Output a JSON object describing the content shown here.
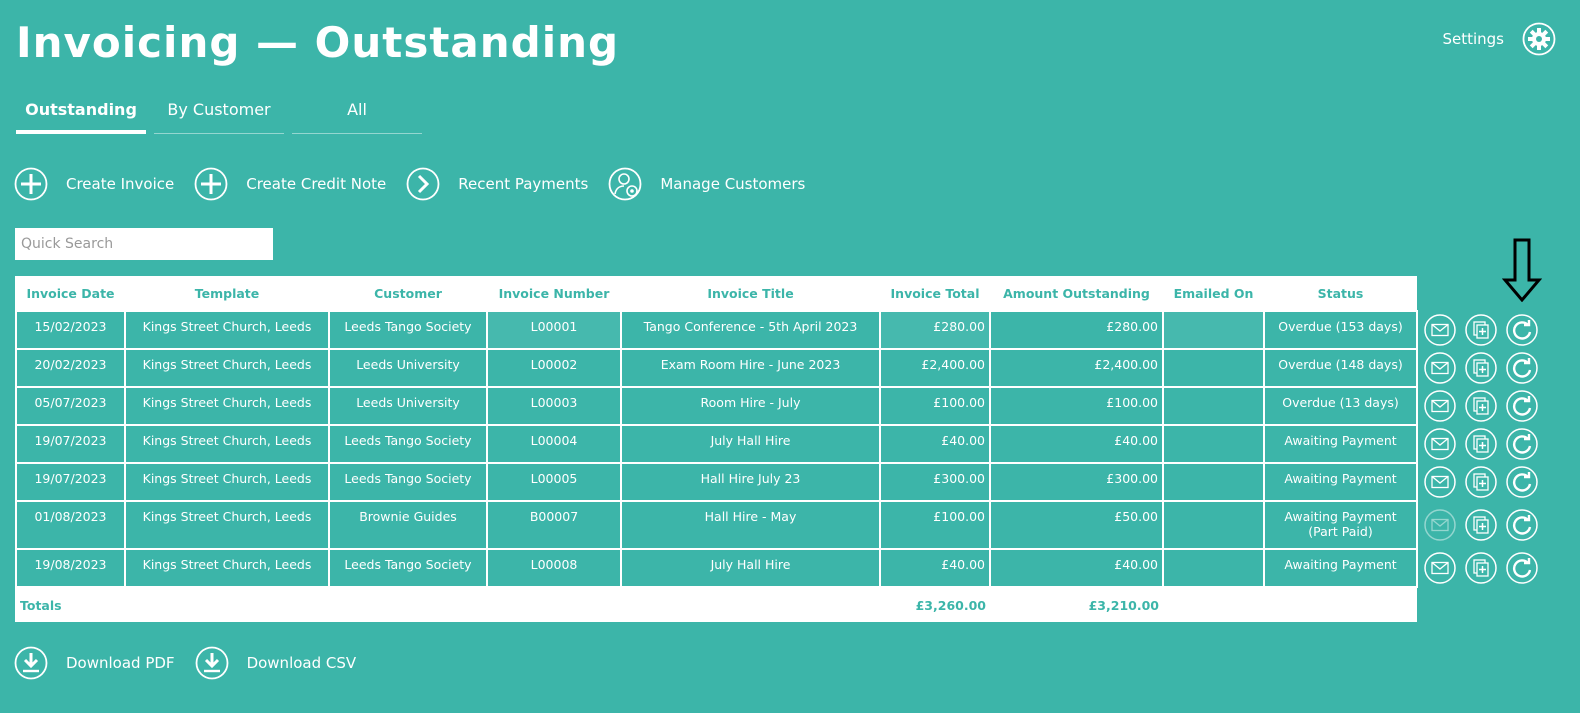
{
  "page": {
    "title": "Invoicing — Outstanding"
  },
  "settings": {
    "label": "Settings",
    "icon": "gear-icon"
  },
  "tabs": [
    {
      "label": "Outstanding",
      "active": true
    },
    {
      "label": "By Customer",
      "active": false
    },
    {
      "label": "All",
      "active": false
    }
  ],
  "actions": {
    "create_invoice": "Create Invoice",
    "create_credit_note": "Create Credit Note",
    "recent_payments": "Recent Payments",
    "manage_customers": "Manage Customers"
  },
  "search": {
    "placeholder": "Quick Search",
    "value": ""
  },
  "table": {
    "headers": [
      "Invoice Date",
      "Template",
      "Customer",
      "Invoice Number",
      "Invoice Title",
      "Invoice Total",
      "Amount Outstanding",
      "Emailed On",
      "Status"
    ],
    "rows": [
      {
        "date": "15/02/2023",
        "template": "Kings Street Church, Leeds",
        "customer": "Leeds Tango Society",
        "number": "L00001",
        "title": "Tango Conference - 5th April 2023",
        "total": "£280.00",
        "outstanding": "£280.00",
        "emailed": "",
        "status": "Overdue (153 days)",
        "status2": "",
        "email_enabled": true
      },
      {
        "date": "20/02/2023",
        "template": "Kings Street Church, Leeds",
        "customer": "Leeds University",
        "number": "L00002",
        "title": "Exam Room Hire - June 2023",
        "total": "£2,400.00",
        "outstanding": "£2,400.00",
        "emailed": "",
        "status": "Overdue (148 days)",
        "status2": "",
        "email_enabled": true
      },
      {
        "date": "05/07/2023",
        "template": "Kings Street Church, Leeds",
        "customer": "Leeds University",
        "number": "L00003",
        "title": "Room Hire - July",
        "total": "£100.00",
        "outstanding": "£100.00",
        "emailed": "",
        "status": "Overdue (13 days)",
        "status2": "",
        "email_enabled": true
      },
      {
        "date": "19/07/2023",
        "template": "Kings Street Church, Leeds",
        "customer": "Leeds Tango Society",
        "number": "L00004",
        "title": "July Hall Hire",
        "total": "£40.00",
        "outstanding": "£40.00",
        "emailed": "",
        "status": "Awaiting Payment",
        "status2": "",
        "email_enabled": true
      },
      {
        "date": "19/07/2023",
        "template": "Kings Street Church, Leeds",
        "customer": "Leeds Tango Society",
        "number": "L00005",
        "title": "Hall Hire July 23",
        "total": "£300.00",
        "outstanding": "£300.00",
        "emailed": "",
        "status": "Awaiting Payment",
        "status2": "",
        "email_enabled": true
      },
      {
        "date": "01/08/2023",
        "template": "Kings Street Church, Leeds",
        "customer": "Brownie Guides",
        "number": "B00007",
        "title": "Hall Hire - May",
        "total": "£100.00",
        "outstanding": "£50.00",
        "emailed": "",
        "status": "Awaiting Payment",
        "status2": "(Part Paid)",
        "email_enabled": false
      },
      {
        "date": "19/08/2023",
        "template": "Kings Street Church, Leeds",
        "customer": "Leeds Tango Society",
        "number": "L00008",
        "title": "July Hall Hire",
        "total": "£40.00",
        "outstanding": "£40.00",
        "emailed": "",
        "status": "Awaiting Payment",
        "status2": "",
        "email_enabled": true
      }
    ],
    "totals": {
      "label": "Totals",
      "total": "£3,260.00",
      "outstanding": "£3,210.00"
    }
  },
  "row_action_icons": [
    "email-icon",
    "duplicate-icon",
    "refresh-icon"
  ],
  "downloads": {
    "pdf": "Download PDF",
    "csv": "Download CSV"
  },
  "colors": {
    "background": "#3cb5a9",
    "foreground": "#ffffff"
  }
}
